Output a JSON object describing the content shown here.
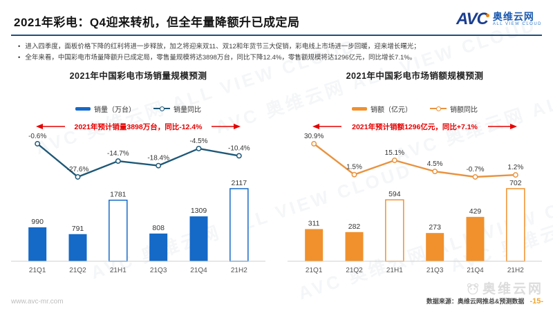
{
  "header": {
    "title": "2021年彩电：Q4迎来转机，但全年量降额升已成定局",
    "logo": {
      "abbr": "AVC",
      "name_cn": "奥维云网",
      "name_en": "ALL VIEW CLOUD"
    }
  },
  "bullets": [
    "进入四季度，面板价格下降的红利将进一步释放，加之将迎来双11、双12和年货节三大促销，彩电线上市场进一步回暖，迎来增长曙光；",
    "全年来看，中国彩电市场量降额升已成定局，零售量规模将达3898万台，同比下降12.4%，零售额规模将达1296亿元，同比增长7.1%。"
  ],
  "watermark_pattern": "AVC 奥维云网 ALL VIEW CLOUD",
  "chart_data": [
    {
      "type": "bar",
      "title": "2021年中国彩电市场销量规模预测",
      "categories": [
        "21Q1",
        "21Q2",
        "21H1",
        "21Q3",
        "21Q4",
        "21H2"
      ],
      "series": [
        {
          "name": "销量（万台）",
          "kind": "bar",
          "values": [
            990,
            791,
            1781,
            808,
            1309,
            2117
          ],
          "outlined": [
            false,
            false,
            true,
            false,
            false,
            true
          ],
          "color": "#1569c7"
        },
        {
          "name": "销量同比",
          "kind": "line",
          "values": [
            -0.6,
            -27.6,
            -14.7,
            -18.4,
            -4.5,
            -10.4
          ],
          "unit": "%",
          "color": "#1e5877"
        }
      ],
      "annotation": {
        "text": "2021年预计销量3898万台，同比-12.4%",
        "color": "#e60000"
      },
      "legend_position": "top",
      "grid": false,
      "ylim_bar": [
        0,
        2117
      ],
      "ylim_line_pct": [
        -27.6,
        -0.6
      ]
    },
    {
      "type": "bar",
      "title": "2021年中国彩电市场销额规模预测",
      "categories": [
        "21Q1",
        "21Q2",
        "21H1",
        "21Q3",
        "21Q4",
        "21H2"
      ],
      "series": [
        {
          "name": "销额（亿元）",
          "kind": "bar",
          "values": [
            311,
            282,
            594,
            273,
            429,
            702
          ],
          "outlined": [
            false,
            false,
            true,
            false,
            false,
            true
          ],
          "color": "#f0912d"
        },
        {
          "name": "销额同比",
          "kind": "line",
          "values": [
            30.9,
            1.5,
            15.1,
            4.5,
            -0.7,
            1.2
          ],
          "unit": "%",
          "color": "#e9933f"
        }
      ],
      "annotation": {
        "text": "2021年预计销额1296亿元，同比+7.1%",
        "color": "#e60000"
      },
      "legend_position": "top",
      "grid": false,
      "ylim_bar": [
        0,
        702
      ],
      "ylim_line_pct": [
        -0.7,
        30.9
      ]
    }
  ],
  "footer": {
    "website": "www.avc-mr.com",
    "source": "数据来源：奥维云网推总&预测数据",
    "page": "-15-",
    "watermark": "奥维云网"
  },
  "colors": {
    "divider_blue": "#1f4e79",
    "bar_blue": "#1569c7",
    "line_blue": "#1e5877",
    "bar_orange": "#f0912d",
    "line_orange": "#e9933f",
    "annotation_red": "#e60000",
    "page_orange": "#f0a430"
  }
}
